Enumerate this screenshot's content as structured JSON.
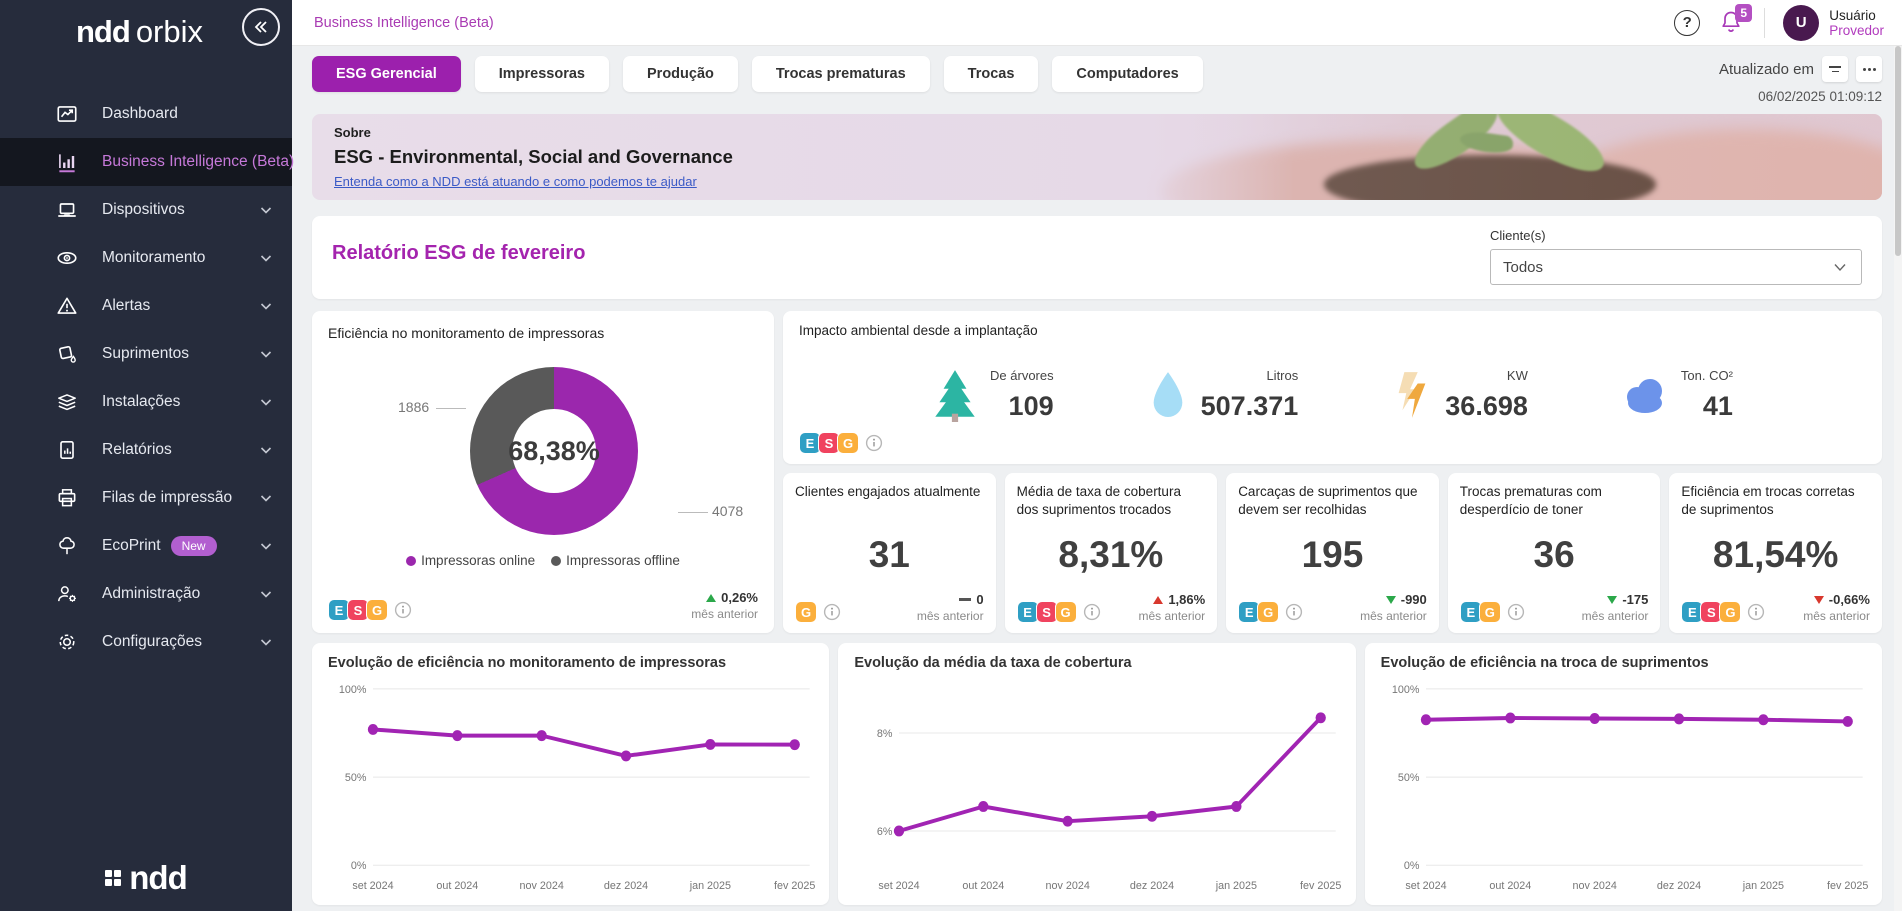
{
  "colors": {
    "accent": "#A124B3",
    "sidebar_bg": "#262C3C",
    "active_item_text": "#C679D9",
    "esg_e": "#2F9FC4",
    "esg_s": "#F0435F",
    "esg_g": "#FBAF3C",
    "trend_green": "#2BA84A",
    "trend_red": "#D8382E",
    "donut_online": "#9B27AD",
    "donut_offline": "#595959"
  },
  "sidebar": {
    "logo_ndd": "ndd",
    "logo_orbix": "orbix",
    "footer_logo": "ndd",
    "items": [
      {
        "label": "Dashboard"
      },
      {
        "label": "Business Intelligence (Beta)",
        "active": true
      },
      {
        "label": "Dispositivos"
      },
      {
        "label": "Monitoramento"
      },
      {
        "label": "Alertas"
      },
      {
        "label": "Suprimentos"
      },
      {
        "label": "Instalações"
      },
      {
        "label": "Relatórios"
      },
      {
        "label": "Filas de impressão"
      },
      {
        "label": "EcoPrint",
        "badge": "New"
      },
      {
        "label": "Administração"
      },
      {
        "label": "Configurações"
      }
    ]
  },
  "topbar": {
    "breadcrumb": "Business Intelligence (Beta)",
    "help_glyph": "?",
    "notification_count": "5",
    "user_initial": "U",
    "user_name": "Usuário",
    "user_role": "Provedor"
  },
  "tabs": {
    "items": [
      "ESG Gerencial",
      "Impressoras",
      "Produção",
      "Trocas prematuras",
      "Trocas",
      "Computadores"
    ],
    "active": "ESG Gerencial"
  },
  "updated": {
    "label": "Atualizado em",
    "timestamp": "06/02/2025 01:09:12"
  },
  "banner": {
    "kicker": "Sobre",
    "title": "ESG - Environmental, Social and Governance",
    "link": "Entenda como a NDD está atuando e como podemos te ajudar"
  },
  "report": {
    "title": "Relatório ESG de fevereiro",
    "client_label": "Cliente(s)",
    "client_value": "Todos"
  },
  "donut_card": {
    "title": "Eficiência no monitoramento de impressoras",
    "badges": [
      "E",
      "S",
      "G"
    ],
    "trend": {
      "direction": "up",
      "color": "green",
      "value": "0,26%",
      "caption": "mês anterior"
    }
  },
  "impact": {
    "title": "Impacto ambiental desde a implantação",
    "badges": [
      "E",
      "S",
      "G"
    ],
    "metrics": [
      {
        "icon": "tree-icon",
        "label": "De árvores",
        "value": "109"
      },
      {
        "icon": "water-drop-icon",
        "label": "Litros",
        "value": "507.371"
      },
      {
        "icon": "lightning-icon",
        "label": "KW",
        "value": "36.698"
      },
      {
        "icon": "cloud-icon",
        "label": "Ton. CO²",
        "value": "41"
      }
    ]
  },
  "kpis": [
    {
      "title": "Clientes engajados atualmente",
      "value": "31",
      "badges": [
        "G"
      ],
      "trend": {
        "direction": "none",
        "color": "gray",
        "value": "0",
        "caption": "mês anterior"
      }
    },
    {
      "title": "Média de taxa de cobertura dos suprimentos trocados",
      "value": "8,31%",
      "badges": [
        "E",
        "S",
        "G"
      ],
      "trend": {
        "direction": "up",
        "color": "red",
        "value": "1,86%",
        "caption": "mês anterior"
      }
    },
    {
      "title": "Carcaças de suprimentos que devem ser recolhidas",
      "value": "195",
      "badges": [
        "E",
        "G"
      ],
      "trend": {
        "direction": "down",
        "color": "green",
        "value": "-990",
        "caption": "mês anterior"
      }
    },
    {
      "title": "Trocas prematuras com desperdício de toner",
      "value": "36",
      "badges": [
        "E",
        "G"
      ],
      "trend": {
        "direction": "down",
        "color": "green",
        "value": "-175",
        "caption": "mês anterior"
      }
    },
    {
      "title": "Eficiência em trocas corretas de suprimentos",
      "value": "81,54%",
      "badges": [
        "E",
        "S",
        "G"
      ],
      "trend": {
        "direction": "down",
        "color": "red",
        "value": "-0,66%",
        "caption": "mês anterior"
      }
    }
  ],
  "chart_data": [
    {
      "type": "pie",
      "variant": "donut",
      "title": "Eficiência no monitoramento de impressoras",
      "center_label": "68,38%",
      "slices": [
        {
          "label": "Impressoras online",
          "value": 4078,
          "color": "#9B27AD"
        },
        {
          "label": "Impressoras offline",
          "value": 1886,
          "color": "#595959"
        }
      ]
    },
    {
      "type": "line",
      "title": "Evolução de eficiência no monitoramento de impressoras",
      "x": [
        "set 2024",
        "out 2024",
        "nov 2024",
        "dez 2024",
        "jan 2025",
        "fev 2025"
      ],
      "values": [
        77,
        73.5,
        73.5,
        62,
        68.5,
        68.38
      ],
      "ylim": [
        0,
        100
      ],
      "yticks": [
        {
          "v": 0,
          "l": "0%"
        },
        {
          "v": 50,
          "l": "50%"
        },
        {
          "v": 100,
          "l": "100%"
        }
      ],
      "line_color": "#A124B3",
      "grid": true,
      "legend": false
    },
    {
      "type": "line",
      "title": "Evolução da média da taxa de cobertura",
      "x": [
        "set 2024",
        "out 2024",
        "nov 2024",
        "dez 2024",
        "jan 2025",
        "fev 2025"
      ],
      "values": [
        6.0,
        6.5,
        6.2,
        6.3,
        6.5,
        8.31
      ],
      "ylim": [
        5.3,
        8.9
      ],
      "yticks": [
        {
          "v": 6,
          "l": "6%"
        },
        {
          "v": 8,
          "l": "8%"
        }
      ],
      "line_color": "#A124B3",
      "grid": true,
      "legend": false
    },
    {
      "type": "line",
      "title": "Evolução de eficiência na troca de suprimentos",
      "x": [
        "set 2024",
        "out 2024",
        "nov 2024",
        "dez 2024",
        "jan 2025",
        "fev 2025"
      ],
      "values": [
        82.5,
        83.5,
        83.2,
        83,
        82.5,
        81.54
      ],
      "ylim": [
        0,
        100
      ],
      "yticks": [
        {
          "v": 0,
          "l": "0%"
        },
        {
          "v": 50,
          "l": "50%"
        },
        {
          "v": 100,
          "l": "100%"
        }
      ],
      "line_color": "#A124B3",
      "grid": true,
      "legend": false
    }
  ]
}
